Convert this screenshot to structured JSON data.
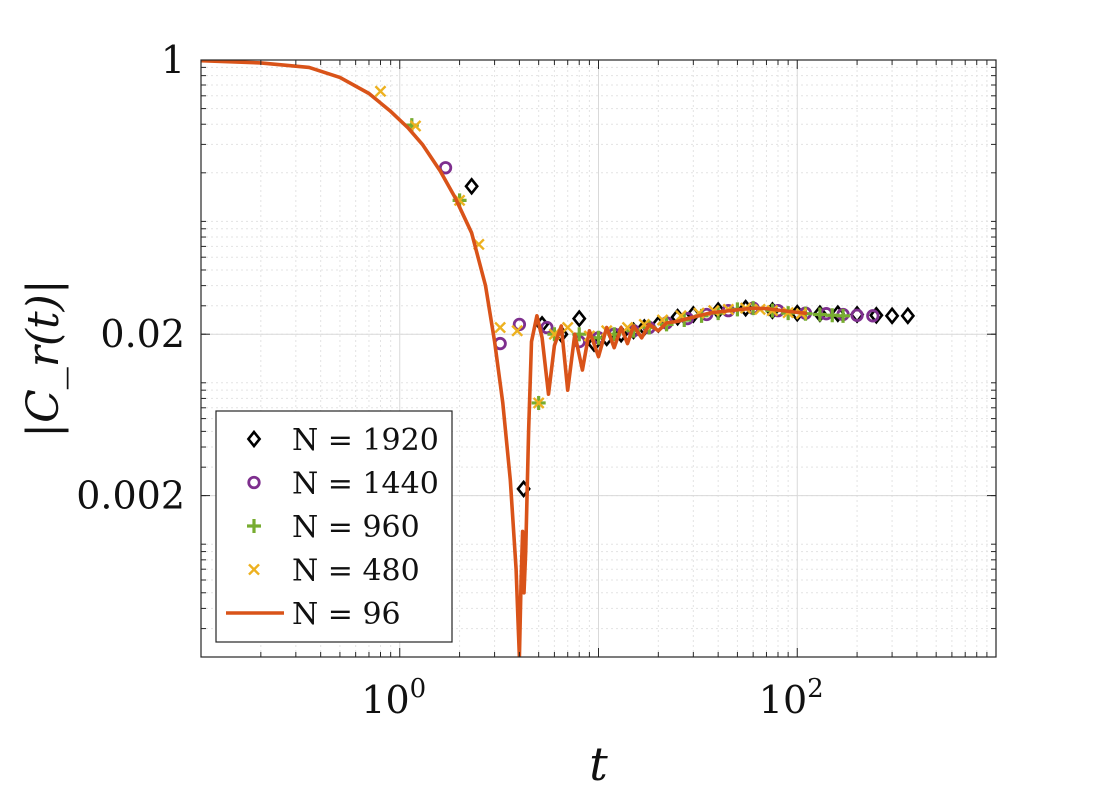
{
  "chart_data": {
    "type": "line",
    "xlabel": "t",
    "ylabel": "|C_r(t)|",
    "xscale": "log",
    "yscale": "log",
    "xlim": [
      0.1,
      1000
    ],
    "ylim": [
      0.0002,
      1
    ],
    "grid": true,
    "legend_position": "lower-left",
    "x_ticks": [
      {
        "value": 1,
        "base": "10",
        "exp": "0"
      },
      {
        "value": 100,
        "base": "10",
        "exp": "2"
      }
    ],
    "y_ticks": [
      {
        "value": 1,
        "label": "1"
      },
      {
        "value": 0.02,
        "label": "0.02"
      },
      {
        "value": 0.002,
        "label": "0.002"
      }
    ],
    "series": [
      {
        "name": "N = 1920",
        "marker": "diamond",
        "color": "#000000",
        "x": [
          2.3,
          4.2,
          5.2,
          6.5,
          8,
          9.5,
          11,
          13,
          15,
          17,
          20,
          25,
          30,
          40,
          55,
          75,
          100,
          130,
          160,
          200,
          250,
          300,
          360
        ],
        "y": [
          0.165,
          0.0022,
          0.023,
          0.02,
          0.025,
          0.0175,
          0.019,
          0.02,
          0.021,
          0.022,
          0.023,
          0.0255,
          0.0265,
          0.028,
          0.029,
          0.028,
          0.027,
          0.0268,
          0.0268,
          0.0265,
          0.0262,
          0.026,
          0.026
        ]
      },
      {
        "name": "N = 1440",
        "marker": "circle",
        "color": "#7e2f8e",
        "x": [
          1.7,
          3.2,
          4.0,
          5.5,
          8,
          10,
          12,
          15,
          18,
          22,
          28,
          35,
          45,
          60,
          80,
          110,
          140,
          170,
          200,
          240
        ],
        "y": [
          0.215,
          0.0175,
          0.023,
          0.022,
          0.018,
          0.019,
          0.02,
          0.021,
          0.022,
          0.0235,
          0.025,
          0.0265,
          0.028,
          0.029,
          0.028,
          0.027,
          0.0268,
          0.0265,
          0.0262,
          0.026
        ]
      },
      {
        "name": "N = 960",
        "marker": "plus",
        "color": "#77ac30",
        "x": [
          1.15,
          2.0,
          5.0,
          6.0,
          8,
          10,
          12,
          15,
          18,
          22,
          27,
          33,
          40,
          50,
          60,
          75,
          90,
          110,
          130,
          150,
          170
        ],
        "y": [
          0.395,
          0.135,
          0.0075,
          0.02,
          0.02,
          0.019,
          0.02,
          0.021,
          0.022,
          0.023,
          0.0245,
          0.026,
          0.027,
          0.0285,
          0.029,
          0.028,
          0.027,
          0.0268,
          0.0265,
          0.0262,
          0.026
        ]
      },
      {
        "name": "N = 480",
        "marker": "x",
        "color": "#edb120",
        "x": [
          0.8,
          1.2,
          2.0,
          2.5,
          3.2,
          3.9,
          5.0,
          6.0,
          7,
          9,
          11,
          14,
          17,
          21,
          26,
          32,
          38,
          45,
          55,
          65,
          75,
          90,
          105
        ],
        "y": [
          0.64,
          0.39,
          0.135,
          0.072,
          0.022,
          0.021,
          0.0075,
          0.02,
          0.022,
          0.0195,
          0.021,
          0.022,
          0.023,
          0.0245,
          0.026,
          0.027,
          0.028,
          0.0285,
          0.029,
          0.0285,
          0.028,
          0.0272,
          0.0268
        ]
      },
      {
        "name": "N = 96",
        "marker": "line",
        "color": "#d95319",
        "x": [
          0.1,
          0.2,
          0.35,
          0.5,
          0.7,
          0.9,
          1.1,
          1.3,
          1.6,
          1.9,
          2.3,
          2.7,
          3.0,
          3.3,
          3.6,
          3.85,
          3.95,
          4.0,
          4.08,
          4.15,
          4.22,
          4.3,
          4.45,
          4.6,
          4.9,
          5.2,
          5.6,
          6.0,
          6.5,
          7.0,
          7.6,
          8.3,
          9,
          10,
          11,
          12,
          13,
          14,
          15,
          16.5,
          18,
          20,
          22,
          25,
          28,
          32,
          36,
          40,
          46,
          52,
          60,
          70,
          80,
          95,
          110
        ],
        "y": [
          0.99,
          0.96,
          0.9,
          0.78,
          0.62,
          0.48,
          0.38,
          0.3,
          0.205,
          0.14,
          0.085,
          0.04,
          0.018,
          0.0075,
          0.0025,
          0.0007,
          0.0003,
          0.0002,
          0.0006,
          0.0012,
          0.0005,
          0.0009,
          0.005,
          0.018,
          0.026,
          0.019,
          0.0085,
          0.017,
          0.0225,
          0.009,
          0.02,
          0.012,
          0.021,
          0.0145,
          0.022,
          0.0165,
          0.022,
          0.0175,
          0.0225,
          0.019,
          0.023,
          0.021,
          0.0235,
          0.024,
          0.025,
          0.026,
          0.027,
          0.0275,
          0.028,
          0.0285,
          0.029,
          0.0288,
          0.0282,
          0.0275,
          0.027
        ]
      }
    ]
  }
}
